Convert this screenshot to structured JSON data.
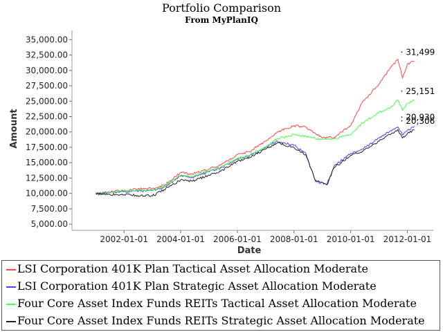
{
  "chart_data": {
    "type": "line",
    "title": "Portfolio Comparison",
    "subtitle": "From MyPlanIQ",
    "xlabel": "Date",
    "ylabel": "Amount",
    "x_ticks": [
      "2002-01-01",
      "2004-01-01",
      "2006-01-01",
      "2008-01-01",
      "2010-01-01",
      "2012-01-01"
    ],
    "y_ticks": [
      "5,000.00",
      "7,500.00",
      "10,000.00",
      "12,500.00",
      "15,000.00",
      "17,500.00",
      "20,000.00",
      "22,500.00",
      "25,000.00",
      "27,500.00",
      "30,000.00",
      "32,500.00",
      "35,000.00"
    ],
    "xlim": [
      "2000-03-01",
      "2012-12-01"
    ],
    "ylim": [
      4000,
      36500
    ],
    "grid": false,
    "legend_position": "bottom",
    "series": [
      {
        "name": "LSI Corporation 401K Plan Tactical Asset Allocation Moderate",
        "color": "#ff4444",
        "end_label": "31,499",
        "points": [
          [
            "2001-01-01",
            10000
          ],
          [
            "2001-06-01",
            10200
          ],
          [
            "2002-01-01",
            10500
          ],
          [
            "2002-06-01",
            10700
          ],
          [
            "2003-01-01",
            10800
          ],
          [
            "2003-06-01",
            11300
          ],
          [
            "2004-01-01",
            13400
          ],
          [
            "2004-06-01",
            13200
          ],
          [
            "2005-01-01",
            14000
          ],
          [
            "2005-06-01",
            14600
          ],
          [
            "2006-01-01",
            16300
          ],
          [
            "2006-06-01",
            16800
          ],
          [
            "2007-01-01",
            18500
          ],
          [
            "2007-06-01",
            20000
          ],
          [
            "2008-01-01",
            21000
          ],
          [
            "2008-06-01",
            20800
          ],
          [
            "2009-01-01",
            19000
          ],
          [
            "2009-06-01",
            19100
          ],
          [
            "2010-01-01",
            21000
          ],
          [
            "2010-06-01",
            24800
          ],
          [
            "2011-01-01",
            27800
          ],
          [
            "2011-06-01",
            30500
          ],
          [
            "2011-09-01",
            31800
          ],
          [
            "2011-11-01",
            28800
          ],
          [
            "2012-01-01",
            31000
          ],
          [
            "2012-04-01",
            31499
          ]
        ]
      },
      {
        "name": "LSI Corporation 401K Plan Strategic Asset Allocation Moderate",
        "color": "#4444ff",
        "end_label": "20,930",
        "points": [
          [
            "2001-01-01",
            10000
          ],
          [
            "2001-06-01",
            10100
          ],
          [
            "2002-01-01",
            10300
          ],
          [
            "2002-06-01",
            10400
          ],
          [
            "2003-01-01",
            10500
          ],
          [
            "2003-06-01",
            11000
          ],
          [
            "2004-01-01",
            12800
          ],
          [
            "2004-06-01",
            12600
          ],
          [
            "2005-01-01",
            13500
          ],
          [
            "2005-06-01",
            14200
          ],
          [
            "2006-01-01",
            15500
          ],
          [
            "2006-06-01",
            16000
          ],
          [
            "2007-01-01",
            17500
          ],
          [
            "2007-06-01",
            18500
          ],
          [
            "2008-01-01",
            17800
          ],
          [
            "2008-06-01",
            16500
          ],
          [
            "2008-10-01",
            12000
          ],
          [
            "2009-03-01",
            11500
          ],
          [
            "2009-06-01",
            14500
          ],
          [
            "2010-01-01",
            16500
          ],
          [
            "2010-06-01",
            17200
          ],
          [
            "2011-01-01",
            19000
          ],
          [
            "2011-06-01",
            20200
          ],
          [
            "2011-09-01",
            20800
          ],
          [
            "2011-11-01",
            19500
          ],
          [
            "2012-01-01",
            20200
          ],
          [
            "2012-04-01",
            20930
          ]
        ]
      },
      {
        "name": "Four Core Asset Index Funds REITs Tactical Asset Allocation Moderate",
        "color": "#44ff44",
        "end_label": "25,151",
        "points": [
          [
            "2001-01-01",
            10000
          ],
          [
            "2001-06-01",
            10200
          ],
          [
            "2002-01-01",
            10400
          ],
          [
            "2002-06-01",
            10500
          ],
          [
            "2003-01-01",
            10600
          ],
          [
            "2003-06-01",
            11200
          ],
          [
            "2004-01-01",
            13000
          ],
          [
            "2004-06-01",
            12800
          ],
          [
            "2005-01-01",
            13700
          ],
          [
            "2005-06-01",
            14300
          ],
          [
            "2006-01-01",
            15700
          ],
          [
            "2006-06-01",
            16200
          ],
          [
            "2007-01-01",
            17600
          ],
          [
            "2007-06-01",
            18900
          ],
          [
            "2008-01-01",
            19600
          ],
          [
            "2008-06-01",
            19200
          ],
          [
            "2009-01-01",
            18800
          ],
          [
            "2009-06-01",
            18900
          ],
          [
            "2010-01-01",
            19500
          ],
          [
            "2010-06-01",
            21500
          ],
          [
            "2011-01-01",
            23200
          ],
          [
            "2011-06-01",
            24000
          ],
          [
            "2011-09-01",
            25200
          ],
          [
            "2011-11-01",
            23500
          ],
          [
            "2012-01-01",
            24600
          ],
          [
            "2012-04-01",
            25151
          ]
        ]
      },
      {
        "name": "Four Core Asset Index Funds REITs Strategic Asset Allocation Moderate",
        "color": "#222222",
        "end_label": "20,306",
        "points": [
          [
            "2001-01-01",
            10000
          ],
          [
            "2001-06-01",
            9800
          ],
          [
            "2002-01-01",
            9800
          ],
          [
            "2002-06-01",
            9700
          ],
          [
            "2003-01-01",
            9600
          ],
          [
            "2003-06-01",
            10600
          ],
          [
            "2004-01-01",
            12200
          ],
          [
            "2004-06-01",
            12000
          ],
          [
            "2005-01-01",
            13000
          ],
          [
            "2005-06-01",
            13600
          ],
          [
            "2006-01-01",
            15200
          ],
          [
            "2006-06-01",
            15800
          ],
          [
            "2007-01-01",
            17200
          ],
          [
            "2007-06-01",
            18200
          ],
          [
            "2008-01-01",
            17500
          ],
          [
            "2008-06-01",
            16300
          ],
          [
            "2008-10-01",
            12200
          ],
          [
            "2009-03-01",
            11400
          ],
          [
            "2009-06-01",
            14200
          ],
          [
            "2010-01-01",
            16200
          ],
          [
            "2010-06-01",
            16800
          ],
          [
            "2011-01-01",
            18500
          ],
          [
            "2011-06-01",
            19600
          ],
          [
            "2011-09-01",
            20400
          ],
          [
            "2011-11-01",
            19000
          ],
          [
            "2012-01-01",
            19700
          ],
          [
            "2012-04-01",
            20306
          ]
        ]
      }
    ]
  }
}
